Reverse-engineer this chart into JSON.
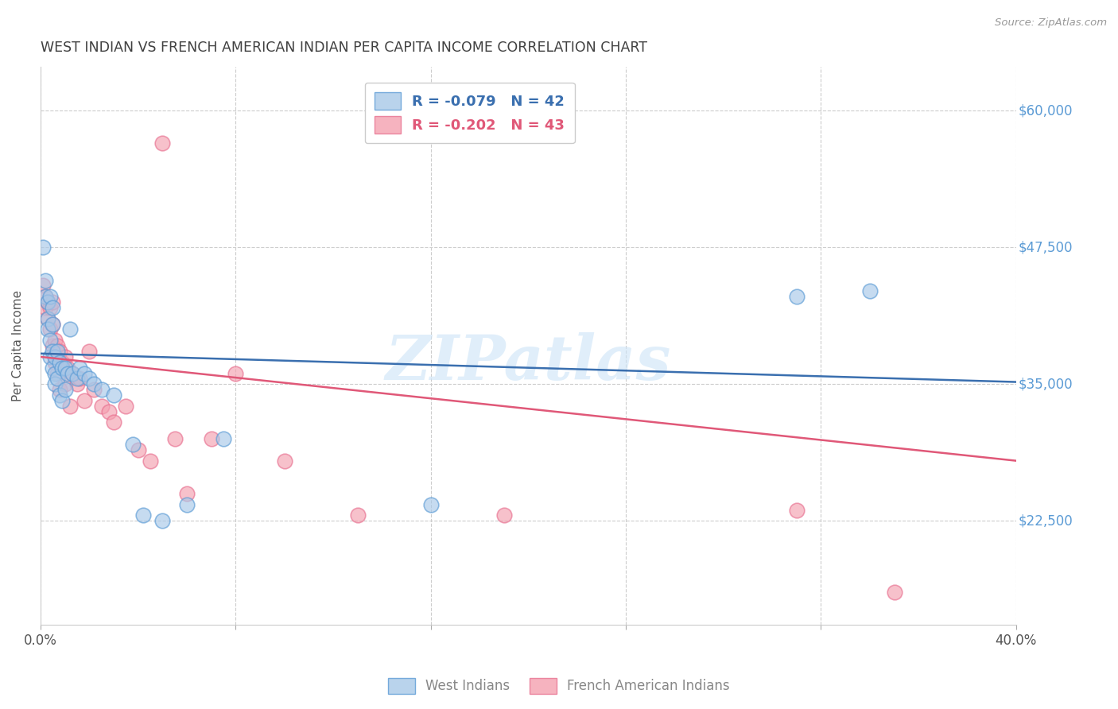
{
  "title": "WEST INDIAN VS FRENCH AMERICAN INDIAN PER CAPITA INCOME CORRELATION CHART",
  "source": "Source: ZipAtlas.com",
  "watermark": "ZIPatlas",
  "ylabel": "Per Capita Income",
  "xlim": [
    0.0,
    0.4
  ],
  "ylim": [
    13000,
    64000
  ],
  "yticks": [
    22500,
    35000,
    47500,
    60000
  ],
  "ytick_labels": [
    "$22,500",
    "$35,000",
    "$47,500",
    "$60,000"
  ],
  "xticks": [
    0.0,
    0.08,
    0.16,
    0.24,
    0.32,
    0.4
  ],
  "xtick_labels": [
    "0.0%",
    "",
    "",
    "",
    "",
    "40.0%"
  ],
  "blue_label": "West Indians",
  "pink_label": "French American Indians",
  "blue_R": "R = -0.079",
  "blue_N": "N = 42",
  "pink_R": "R = -0.202",
  "pink_N": "N = 43",
  "blue_color": "#a8c8e8",
  "pink_color": "#f4a0b0",
  "blue_edge_color": "#5b9bd5",
  "pink_edge_color": "#e87090",
  "blue_line_color": "#3a6faf",
  "pink_line_color": "#e05878",
  "background_color": "#ffffff",
  "grid_color": "#cccccc",
  "title_color": "#404040",
  "axis_label_color": "#555555",
  "tick_label_color": "#5b9bd5",
  "blue_x": [
    0.001,
    0.002,
    0.002,
    0.003,
    0.003,
    0.003,
    0.004,
    0.004,
    0.004,
    0.005,
    0.005,
    0.005,
    0.005,
    0.006,
    0.006,
    0.006,
    0.007,
    0.007,
    0.008,
    0.008,
    0.009,
    0.009,
    0.01,
    0.01,
    0.011,
    0.012,
    0.013,
    0.015,
    0.016,
    0.018,
    0.02,
    0.022,
    0.025,
    0.03,
    0.038,
    0.042,
    0.05,
    0.06,
    0.075,
    0.16,
    0.31,
    0.34
  ],
  "blue_y": [
    47500,
    44500,
    43000,
    42500,
    41000,
    40000,
    43000,
    39000,
    37500,
    42000,
    40500,
    38000,
    36500,
    37500,
    36000,
    35000,
    38000,
    35500,
    37000,
    34000,
    36500,
    33500,
    36500,
    34500,
    36000,
    40000,
    36000,
    35500,
    36500,
    36000,
    35500,
    35000,
    34500,
    34000,
    29500,
    23000,
    22500,
    24000,
    30000,
    24000,
    43000,
    43500
  ],
  "pink_x": [
    0.001,
    0.002,
    0.002,
    0.003,
    0.003,
    0.004,
    0.004,
    0.005,
    0.005,
    0.005,
    0.006,
    0.006,
    0.007,
    0.007,
    0.008,
    0.008,
    0.009,
    0.01,
    0.01,
    0.011,
    0.012,
    0.013,
    0.015,
    0.016,
    0.018,
    0.02,
    0.022,
    0.025,
    0.028,
    0.03,
    0.035,
    0.04,
    0.045,
    0.05,
    0.055,
    0.06,
    0.07,
    0.08,
    0.1,
    0.13,
    0.19,
    0.31,
    0.35
  ],
  "pink_y": [
    44000,
    43000,
    42000,
    42500,
    41000,
    42000,
    40000,
    42500,
    40500,
    38500,
    39000,
    37000,
    38500,
    36000,
    38000,
    34500,
    37000,
    37500,
    35000,
    36500,
    33000,
    36000,
    35000,
    35500,
    33500,
    38000,
    34500,
    33000,
    32500,
    31500,
    33000,
    29000,
    28000,
    57000,
    30000,
    25000,
    30000,
    36000,
    28000,
    23000,
    23000,
    23500,
    16000
  ],
  "blue_trend_x": [
    0.0,
    0.4
  ],
  "blue_trend_y": [
    37800,
    35200
  ],
  "pink_trend_x": [
    0.0,
    0.4
  ],
  "pink_trend_y": [
    37500,
    28000
  ]
}
